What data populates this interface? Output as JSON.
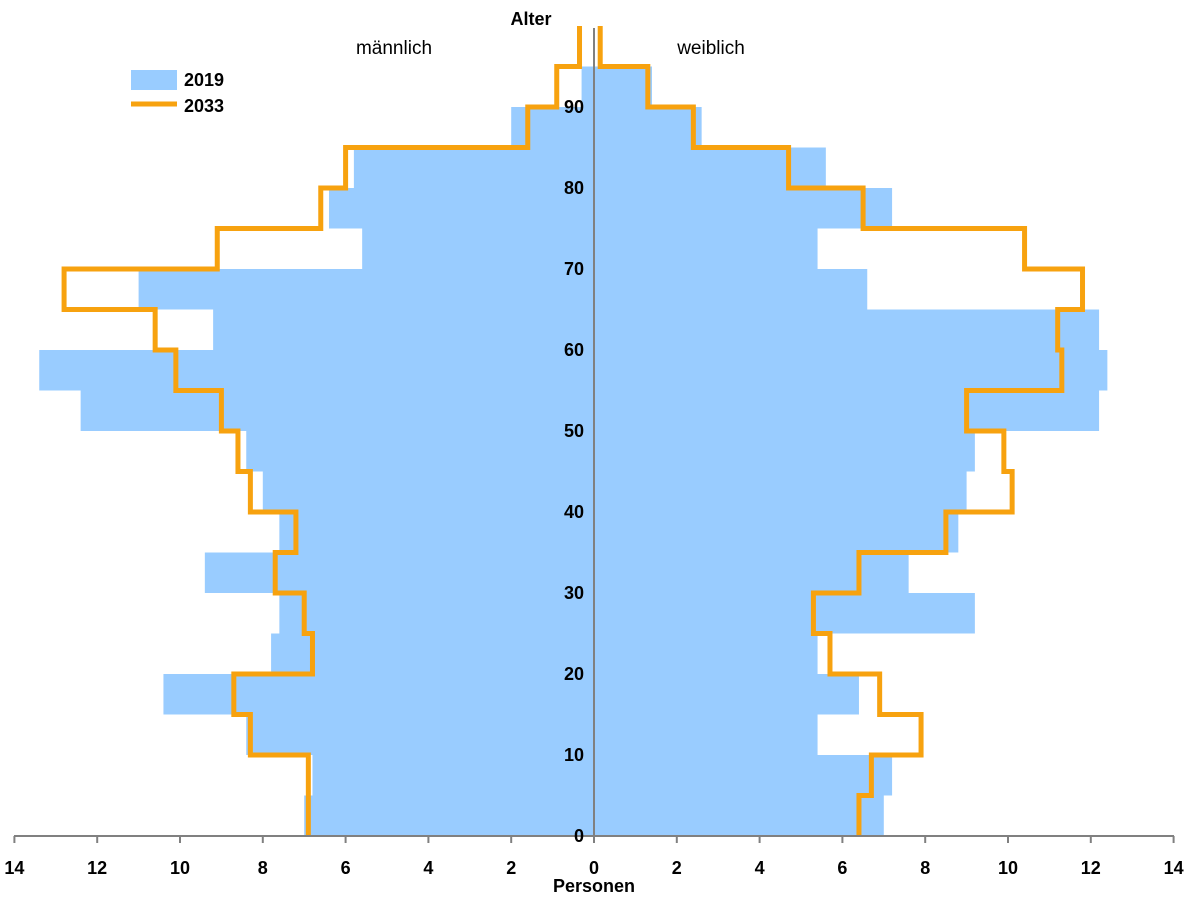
{
  "chart_data": {
    "type": "population-pyramid",
    "y_axis_title": "Alter",
    "x_axis_title": "Personen",
    "left_label": "männlich",
    "right_label": "weiblich",
    "x_ticks": [
      "14",
      "12",
      "10",
      "8",
      "6",
      "4",
      "2",
      "0",
      "2",
      "4",
      "6",
      "8",
      "10",
      "12",
      "14"
    ],
    "y_ticks": [
      "0",
      "10",
      "20",
      "30",
      "40",
      "50",
      "60",
      "70",
      "80",
      "90"
    ],
    "xlim": [
      -14,
      14
    ],
    "ylim": [
      0,
      97
    ],
    "age_group_width": 5,
    "age_groups": [
      "0-4",
      "5-9",
      "10-14",
      "15-19",
      "20-24",
      "25-29",
      "30-34",
      "35-39",
      "40-44",
      "45-49",
      "50-54",
      "55-59",
      "60-64",
      "65-69",
      "70-74",
      "75-79",
      "80-84",
      "85-89",
      "90-94",
      "95+"
    ],
    "colors": {
      "bars_2019": "#99ccff",
      "line_2033": "#f7a20f",
      "axis": "#808080"
    },
    "series": [
      {
        "name": "2019",
        "style": "bars",
        "male": [
          7.0,
          6.8,
          8.4,
          10.4,
          7.8,
          7.6,
          9.4,
          7.6,
          8.0,
          8.4,
          12.4,
          13.4,
          9.2,
          11.0,
          5.6,
          6.4,
          5.8,
          2.0,
          0.3,
          0.0
        ],
        "female": [
          7.0,
          7.2,
          5.4,
          6.4,
          5.4,
          9.2,
          7.6,
          8.8,
          9.0,
          9.2,
          12.2,
          12.4,
          12.2,
          6.6,
          5.4,
          7.2,
          5.6,
          2.6,
          1.4,
          0.0
        ]
      },
      {
        "name": "2033",
        "style": "step-line",
        "male": [
          6.9,
          6.9,
          8.3,
          8.7,
          6.8,
          7.0,
          7.7,
          7.2,
          8.3,
          8.6,
          9.0,
          10.1,
          10.6,
          12.8,
          9.1,
          6.6,
          6.0,
          1.6,
          0.9,
          0.35
        ],
        "female": [
          6.4,
          6.7,
          7.9,
          6.9,
          5.7,
          5.3,
          6.4,
          8.5,
          10.1,
          9.9,
          9.0,
          11.3,
          11.2,
          11.8,
          10.4,
          6.5,
          4.7,
          2.4,
          1.3,
          0.15
        ]
      }
    ],
    "legend": {
      "position": "top-left",
      "entries": [
        "2019",
        "2033"
      ]
    }
  }
}
